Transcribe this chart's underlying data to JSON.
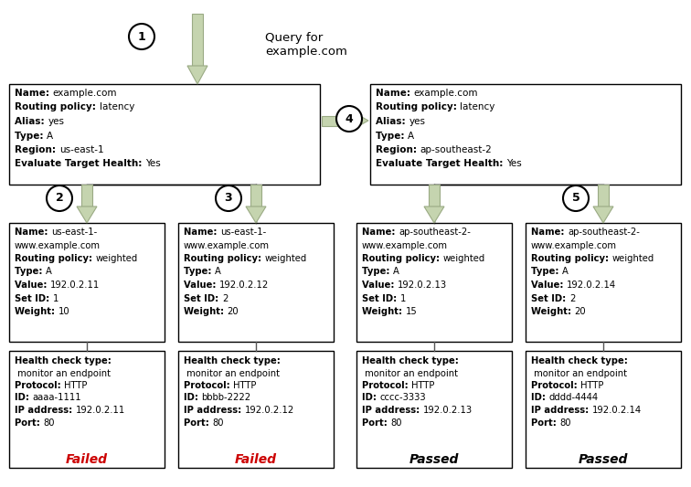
{
  "arrow_color": "#c5d4af",
  "arrow_edge_color": "#9aaa84",
  "query_text": "Query for\nexample.com",
  "latency_boxes": [
    {
      "region": "us-east-1",
      "lines": [
        [
          "Name: ",
          "example.com"
        ],
        [
          "Routing policy: ",
          "latency"
        ],
        [
          "Alias: ",
          "yes"
        ],
        [
          "Type: ",
          "A"
        ],
        [
          "Region: ",
          "us-east-1"
        ],
        [
          "Evaluate Target Health: ",
          "Yes"
        ]
      ]
    },
    {
      "region": "ap-southeast-2",
      "lines": [
        [
          "Name: ",
          "example.com"
        ],
        [
          "Routing policy: ",
          "latency"
        ],
        [
          "Alias: ",
          "yes"
        ],
        [
          "Type: ",
          "A"
        ],
        [
          "Region: ",
          "ap-southeast-2"
        ],
        [
          "Evaluate Target Health: ",
          "Yes"
        ]
      ]
    }
  ],
  "weighted_boxes": [
    {
      "lines": [
        [
          "Name: ",
          "us-east-1-\nwww.example.com"
        ],
        [
          "Routing policy: ",
          "weighted"
        ],
        [
          "Type: ",
          "A"
        ],
        [
          "Value: ",
          "192.0.2.11"
        ],
        [
          "Set ID: ",
          "1"
        ],
        [
          "Weight: ",
          "10"
        ]
      ]
    },
    {
      "lines": [
        [
          "Name: ",
          "us-east-1-\nwww.example.com"
        ],
        [
          "Routing policy: ",
          "weighted"
        ],
        [
          "Type: ",
          "A"
        ],
        [
          "Value: ",
          "192.0.2.12"
        ],
        [
          "Set ID: ",
          "2"
        ],
        [
          "Weight: ",
          "20"
        ]
      ]
    },
    {
      "lines": [
        [
          "Name: ",
          "ap-southeast-2-\nwww.example.com"
        ],
        [
          "Routing policy: ",
          "weighted"
        ],
        [
          "Type: ",
          "A"
        ],
        [
          "Value: ",
          "192.0.2.13"
        ],
        [
          "Set ID: ",
          "1"
        ],
        [
          "Weight: ",
          "15"
        ]
      ]
    },
    {
      "lines": [
        [
          "Name: ",
          "ap-southeast-2-\nwww.example.com"
        ],
        [
          "Routing policy: ",
          "weighted"
        ],
        [
          "Type: ",
          "A"
        ],
        [
          "Value: ",
          "192.0.2.14"
        ],
        [
          "Set ID: ",
          "2"
        ],
        [
          "Weight: ",
          "20"
        ]
      ]
    }
  ],
  "health_boxes": [
    {
      "lines": [
        [
          "Health check type:"
        ],
        [
          " monitor an endpoint"
        ],
        [
          "Protocol: ",
          "HTTP"
        ],
        [
          "ID: ",
          "aaaa-1111"
        ],
        [
          "IP address: ",
          "192.0.2.11"
        ],
        [
          "Port: ",
          "80"
        ]
      ],
      "status": "Failed",
      "status_color": "#cc0000"
    },
    {
      "lines": [
        [
          "Health check type:"
        ],
        [
          " monitor an endpoint"
        ],
        [
          "Protocol: ",
          "HTTP"
        ],
        [
          "ID: ",
          "bbbb-2222"
        ],
        [
          "IP address: ",
          "192.0.2.12"
        ],
        [
          "Port: ",
          "80"
        ]
      ],
      "status": "Failed",
      "status_color": "#cc0000"
    },
    {
      "lines": [
        [
          "Health check type:"
        ],
        [
          " monitor an endpoint"
        ],
        [
          "Protocol: ",
          "HTTP"
        ],
        [
          "ID: ",
          "cccc-3333"
        ],
        [
          "IP address: ",
          "192.0.2.13"
        ],
        [
          "Port: ",
          "80"
        ]
      ],
      "status": "Passed",
      "status_color": "#000000"
    },
    {
      "lines": [
        [
          "Health check type:"
        ],
        [
          " monitor an endpoint"
        ],
        [
          "Protocol: ",
          "HTTP"
        ],
        [
          "ID: ",
          "dddd-4444"
        ],
        [
          "IP address: ",
          "192.0.2.14"
        ],
        [
          "Port: ",
          "80"
        ]
      ],
      "status": "Passed",
      "status_color": "#000000"
    }
  ]
}
